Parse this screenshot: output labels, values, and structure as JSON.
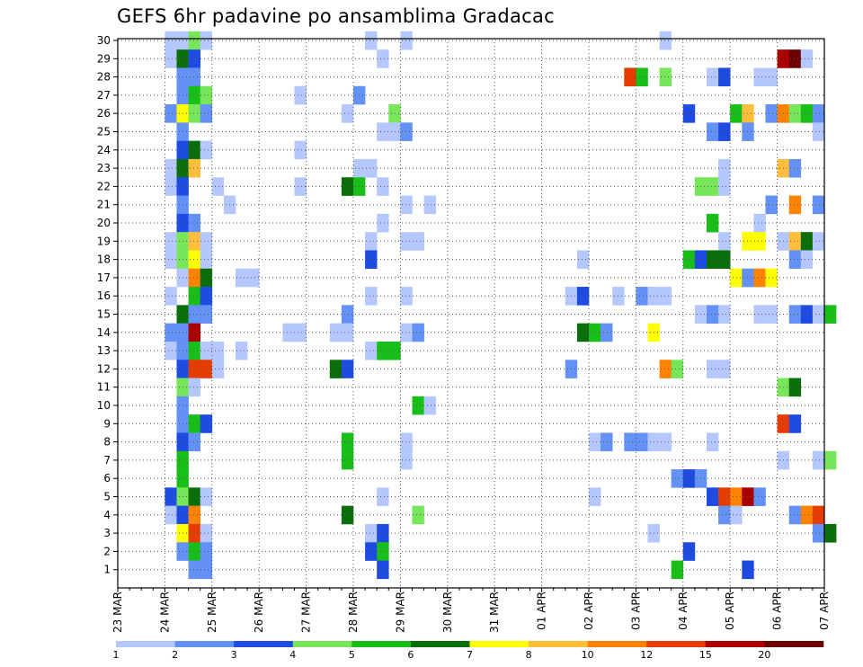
{
  "chart_data": {
    "type": "heatmap",
    "title": "GEFS 6hr padavine po ansamblima Gradacac",
    "y_axis": {
      "label": "",
      "ticks": [
        1,
        2,
        3,
        4,
        5,
        6,
        7,
        8,
        9,
        10,
        11,
        12,
        13,
        14,
        15,
        16,
        17,
        18,
        19,
        20,
        21,
        22,
        23,
        24,
        25,
        26,
        27,
        28,
        29,
        30
      ]
    },
    "x_axis": {
      "label": "",
      "ticks": [
        "23 MAR",
        "24 MAR",
        "25 MAR",
        "26 MAR",
        "27 MAR",
        "28 MAR",
        "29 MAR",
        "30 MAR",
        "31 MAR",
        "01 APR",
        "02 APR",
        "03 APR",
        "04 APR",
        "05 APR",
        "06 APR",
        "07 APR"
      ],
      "time_step": "6hr"
    },
    "grid": true,
    "grid_style": "dotted",
    "legend": {
      "position": "bottom",
      "labels": [
        "1",
        "2",
        "3",
        "4",
        "5",
        "6",
        "7",
        "8",
        "10",
        "12",
        "15",
        "20"
      ],
      "colors": [
        "#b4c8ff",
        "#6491f5",
        "#1e4be1",
        "#78e65a",
        "#19be19",
        "#0a6e0a",
        "#ffff00",
        "#ffbe3c",
        "#ff8200",
        "#e63c00",
        "#aa0000",
        "#6e0000"
      ]
    },
    "cells_note_format": "[step, member, level]",
    "cells": [
      [
        4,
        30,
        0
      ],
      [
        5,
        30,
        0
      ],
      [
        6,
        30,
        3
      ],
      [
        7,
        30,
        0
      ],
      [
        21,
        30,
        0
      ],
      [
        24,
        30,
        0
      ],
      [
        46,
        30,
        0
      ],
      [
        4,
        29,
        0
      ],
      [
        5,
        29,
        5
      ],
      [
        6,
        29,
        2
      ],
      [
        22,
        29,
        0
      ],
      [
        56,
        29,
        10
      ],
      [
        57,
        29,
        11
      ],
      [
        58,
        29,
        0
      ],
      [
        5,
        28,
        1
      ],
      [
        6,
        28,
        1
      ],
      [
        43,
        28,
        9
      ],
      [
        44,
        28,
        4
      ],
      [
        46,
        28,
        3
      ],
      [
        50,
        28,
        0
      ],
      [
        51,
        28,
        2
      ],
      [
        54,
        28,
        0
      ],
      [
        55,
        28,
        0
      ],
      [
        5,
        27,
        1
      ],
      [
        6,
        27,
        4
      ],
      [
        7,
        27,
        3
      ],
      [
        15,
        27,
        0
      ],
      [
        20,
        27,
        1
      ],
      [
        4,
        26,
        1
      ],
      [
        5,
        26,
        6
      ],
      [
        6,
        26,
        3
      ],
      [
        7,
        26,
        1
      ],
      [
        19,
        26,
        0
      ],
      [
        23,
        26,
        3
      ],
      [
        48,
        26,
        2
      ],
      [
        52,
        26,
        4
      ],
      [
        53,
        26,
        7
      ],
      [
        55,
        26,
        1
      ],
      [
        56,
        26,
        8
      ],
      [
        57,
        26,
        3
      ],
      [
        58,
        26,
        4
      ],
      [
        59,
        26,
        1
      ],
      [
        5,
        25,
        1
      ],
      [
        22,
        25,
        0
      ],
      [
        23,
        25,
        0
      ],
      [
        24,
        25,
        1
      ],
      [
        50,
        25,
        1
      ],
      [
        51,
        25,
        2
      ],
      [
        53,
        25,
        1
      ],
      [
        59,
        25,
        0
      ],
      [
        5,
        24,
        2
      ],
      [
        6,
        24,
        5
      ],
      [
        7,
        24,
        0
      ],
      [
        15,
        24,
        0
      ],
      [
        4,
        23,
        0
      ],
      [
        5,
        23,
        5
      ],
      [
        6,
        23,
        7
      ],
      [
        20,
        23,
        0
      ],
      [
        21,
        23,
        0
      ],
      [
        51,
        23,
        0
      ],
      [
        56,
        23,
        7
      ],
      [
        57,
        23,
        1
      ],
      [
        4,
        22,
        0
      ],
      [
        5,
        22,
        2
      ],
      [
        8,
        22,
        0
      ],
      [
        15,
        22,
        0
      ],
      [
        19,
        22,
        5
      ],
      [
        20,
        22,
        4
      ],
      [
        22,
        22,
        0
      ],
      [
        49,
        22,
        3
      ],
      [
        50,
        22,
        3
      ],
      [
        51,
        22,
        0
      ],
      [
        5,
        21,
        1
      ],
      [
        9,
        21,
        0
      ],
      [
        24,
        21,
        0
      ],
      [
        26,
        21,
        0
      ],
      [
        55,
        21,
        1
      ],
      [
        57,
        21,
        8
      ],
      [
        59,
        21,
        1
      ],
      [
        5,
        20,
        2
      ],
      [
        6,
        20,
        1
      ],
      [
        22,
        20,
        0
      ],
      [
        50,
        20,
        4
      ],
      [
        54,
        20,
        0
      ],
      [
        4,
        19,
        0
      ],
      [
        5,
        19,
        3
      ],
      [
        6,
        19,
        7
      ],
      [
        7,
        19,
        0
      ],
      [
        21,
        19,
        0
      ],
      [
        24,
        19,
        0
      ],
      [
        25,
        19,
        0
      ],
      [
        51,
        19,
        0
      ],
      [
        53,
        19,
        6
      ],
      [
        54,
        19,
        6
      ],
      [
        56,
        19,
        0
      ],
      [
        57,
        19,
        7
      ],
      [
        58,
        19,
        5
      ],
      [
        59,
        19,
        0
      ],
      [
        4,
        18,
        0
      ],
      [
        5,
        18,
        3
      ],
      [
        6,
        18,
        6
      ],
      [
        7,
        18,
        0
      ],
      [
        21,
        18,
        2
      ],
      [
        39,
        18,
        0
      ],
      [
        48,
        18,
        4
      ],
      [
        49,
        18,
        2
      ],
      [
        50,
        18,
        5
      ],
      [
        51,
        18,
        5
      ],
      [
        57,
        18,
        1
      ],
      [
        58,
        18,
        0
      ],
      [
        5,
        17,
        0
      ],
      [
        6,
        17,
        8
      ],
      [
        7,
        17,
        5
      ],
      [
        10,
        17,
        0
      ],
      [
        11,
        17,
        0
      ],
      [
        52,
        17,
        6
      ],
      [
        53,
        17,
        1
      ],
      [
        54,
        17,
        8
      ],
      [
        55,
        17,
        6
      ],
      [
        4,
        16,
        0
      ],
      [
        6,
        16,
        4
      ],
      [
        7,
        16,
        2
      ],
      [
        21,
        16,
        0
      ],
      [
        24,
        16,
        0
      ],
      [
        38,
        16,
        0
      ],
      [
        39,
        16,
        2
      ],
      [
        42,
        16,
        0
      ],
      [
        44,
        16,
        1
      ],
      [
        45,
        16,
        0
      ],
      [
        46,
        16,
        0
      ],
      [
        5,
        15,
        5
      ],
      [
        6,
        15,
        1
      ],
      [
        7,
        15,
        1
      ],
      [
        19,
        15,
        1
      ],
      [
        49,
        15,
        0
      ],
      [
        50,
        15,
        1
      ],
      [
        51,
        15,
        0
      ],
      [
        54,
        15,
        0
      ],
      [
        55,
        15,
        0
      ],
      [
        57,
        15,
        1
      ],
      [
        58,
        15,
        2
      ],
      [
        59,
        15,
        0
      ],
      [
        60,
        15,
        4
      ],
      [
        4,
        14,
        1
      ],
      [
        5,
        14,
        1
      ],
      [
        6,
        14,
        10
      ],
      [
        14,
        14,
        0
      ],
      [
        15,
        14,
        0
      ],
      [
        18,
        14,
        0
      ],
      [
        19,
        14,
        0
      ],
      [
        24,
        14,
        0
      ],
      [
        25,
        14,
        1
      ],
      [
        39,
        14,
        5
      ],
      [
        40,
        14,
        4
      ],
      [
        41,
        14,
        1
      ],
      [
        45,
        14,
        6
      ],
      [
        4,
        13,
        0
      ],
      [
        5,
        13,
        1
      ],
      [
        6,
        13,
        4
      ],
      [
        7,
        13,
        0
      ],
      [
        8,
        13,
        0
      ],
      [
        10,
        13,
        0
      ],
      [
        21,
        13,
        0
      ],
      [
        22,
        13,
        4
      ],
      [
        23,
        13,
        4
      ],
      [
        5,
        12,
        2
      ],
      [
        6,
        12,
        9
      ],
      [
        7,
        12,
        9
      ],
      [
        8,
        12,
        0
      ],
      [
        18,
        12,
        5
      ],
      [
        19,
        12,
        2
      ],
      [
        38,
        12,
        1
      ],
      [
        46,
        12,
        8
      ],
      [
        47,
        12,
        3
      ],
      [
        50,
        12,
        0
      ],
      [
        51,
        12,
        0
      ],
      [
        5,
        11,
        3
      ],
      [
        6,
        11,
        0
      ],
      [
        56,
        11,
        3
      ],
      [
        57,
        11,
        5
      ],
      [
        5,
        10,
        1
      ],
      [
        25,
        10,
        4
      ],
      [
        26,
        10,
        0
      ],
      [
        5,
        9,
        1
      ],
      [
        6,
        9,
        4
      ],
      [
        7,
        9,
        2
      ],
      [
        56,
        9,
        9
      ],
      [
        57,
        9,
        2
      ],
      [
        5,
        8,
        2
      ],
      [
        6,
        8,
        1
      ],
      [
        19,
        8,
        4
      ],
      [
        24,
        8,
        0
      ],
      [
        40,
        8,
        0
      ],
      [
        41,
        8,
        1
      ],
      [
        43,
        8,
        1
      ],
      [
        44,
        8,
        1
      ],
      [
        45,
        8,
        0
      ],
      [
        46,
        8,
        0
      ],
      [
        50,
        8,
        0
      ],
      [
        5,
        7,
        4
      ],
      [
        19,
        7,
        4
      ],
      [
        24,
        7,
        0
      ],
      [
        56,
        7,
        0
      ],
      [
        59,
        7,
        0
      ],
      [
        60,
        7,
        3
      ],
      [
        5,
        6,
        4
      ],
      [
        47,
        6,
        1
      ],
      [
        48,
        6,
        2
      ],
      [
        49,
        6,
        1
      ],
      [
        4,
        5,
        2
      ],
      [
        5,
        5,
        3
      ],
      [
        6,
        5,
        5
      ],
      [
        7,
        5,
        0
      ],
      [
        22,
        5,
        0
      ],
      [
        40,
        5,
        0
      ],
      [
        50,
        5,
        2
      ],
      [
        51,
        5,
        9
      ],
      [
        52,
        5,
        8
      ],
      [
        53,
        5,
        10
      ],
      [
        54,
        5,
        1
      ],
      [
        4,
        4,
        0
      ],
      [
        5,
        4,
        2
      ],
      [
        6,
        4,
        8
      ],
      [
        19,
        4,
        5
      ],
      [
        25,
        4,
        3
      ],
      [
        51,
        4,
        1
      ],
      [
        52,
        4,
        0
      ],
      [
        57,
        4,
        1
      ],
      [
        58,
        4,
        8
      ],
      [
        59,
        4,
        9
      ],
      [
        5,
        3,
        6
      ],
      [
        6,
        3,
        9
      ],
      [
        7,
        3,
        0
      ],
      [
        21,
        3,
        0
      ],
      [
        22,
        3,
        2
      ],
      [
        45,
        3,
        0
      ],
      [
        59,
        3,
        1
      ],
      [
        60,
        3,
        5
      ],
      [
        5,
        2,
        1
      ],
      [
        6,
        2,
        4
      ],
      [
        7,
        2,
        1
      ],
      [
        21,
        2,
        2
      ],
      [
        22,
        2,
        4
      ],
      [
        48,
        2,
        2
      ],
      [
        6,
        1,
        1
      ],
      [
        7,
        1,
        1
      ],
      [
        22,
        1,
        2
      ],
      [
        47,
        1,
        4
      ],
      [
        53,
        1,
        2
      ]
    ]
  }
}
